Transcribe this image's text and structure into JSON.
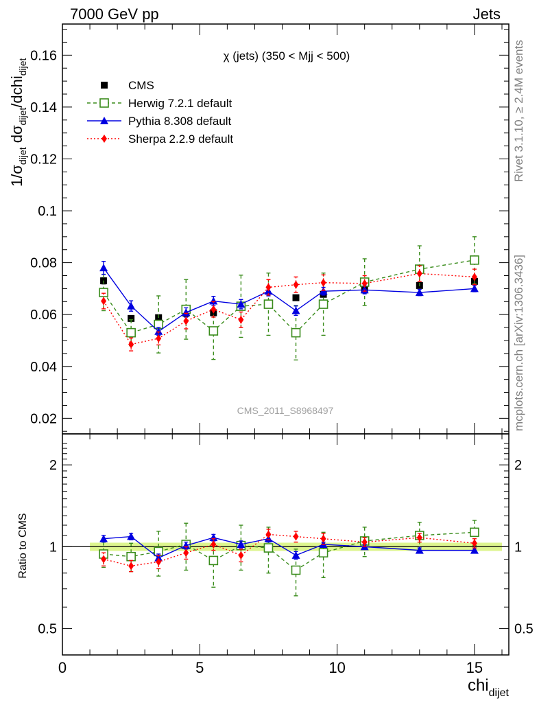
{
  "header": {
    "energy_label": "7000 GeV pp",
    "process_label": "Jets"
  },
  "side_labels": {
    "rivet": "Rivet 3.1.10, ≥ 2.4M events",
    "mcplots": "mcplots.cern.ch [arXiv:1306.3436]"
  },
  "analysis_id": "CMS_2011_S8968497",
  "plot_title": "χ (jets) (350 < Mjj <  500)",
  "y_label": {
    "main": "1/σ",
    "sub1": "dijet",
    "mid": " dσ",
    "sub2": "dijet",
    "tail": "/dchi",
    "sub3": "dijet"
  },
  "x_label": {
    "main": "chi",
    "sub": "dijet"
  },
  "ratio_label": "Ratio to CMS",
  "colors": {
    "cms": "#000000",
    "herwig": "#3a8c1c",
    "pythia": "#0000e0",
    "sherpa": "#ff0000",
    "band": "#ddf58f"
  },
  "chart_data": [
    {
      "type": "scatter",
      "x_range": [
        0,
        16.25
      ],
      "ylim": [
        0.014,
        0.172
      ],
      "yticks": [
        "0.02",
        "0.04",
        "0.06",
        "0.08",
        "0.1",
        "0.12",
        "0.14",
        "0.16"
      ],
      "legend_position": "top-left",
      "x": [
        1.5,
        2.5,
        3.5,
        4.5,
        5.5,
        6.5,
        7.5,
        8.5,
        9.5,
        11,
        13,
        15
      ],
      "series": [
        {
          "key": "cms",
          "name": "CMS",
          "values": [
            0.073,
            0.0585,
            0.0588,
            0.0605,
            0.0607,
            0.0632,
            0.0642,
            0.0665,
            0.0678,
            0.0695,
            0.0712,
            0.0728
          ],
          "errors": [
            0.0012,
            0.001,
            0.001,
            0.001,
            0.001,
            0.001,
            0.001,
            0.001,
            0.001,
            0.001,
            0.001,
            0.001
          ]
        },
        {
          "key": "herwig",
          "name": "Herwig 7.2.1 default",
          "values": [
            0.0685,
            0.053,
            0.0562,
            0.062,
            0.0537,
            0.0632,
            0.064,
            0.053,
            0.064,
            0.0725,
            0.0775,
            0.081
          ],
          "errors": [
            0.007,
            0.005,
            0.011,
            0.0115,
            0.011,
            0.012,
            0.012,
            0.0105,
            0.012,
            0.009,
            0.009,
            0.009
          ]
        },
        {
          "key": "pythia",
          "name": "Pythia 8.308 default",
          "values": [
            0.078,
            0.0633,
            0.0535,
            0.0608,
            0.0652,
            0.064,
            0.069,
            0.0615,
            0.069,
            0.0695,
            0.0685,
            0.07
          ],
          "errors": [
            0.0025,
            0.002,
            0.0015,
            0.0018,
            0.0018,
            0.0018,
            0.0018,
            0.0018,
            0.0015,
            0.0015,
            0.0012,
            0.0012
          ]
        },
        {
          "key": "sherpa",
          "name": "Sherpa 2.2.9 default",
          "values": [
            0.0652,
            0.0485,
            0.0508,
            0.0575,
            0.062,
            0.058,
            0.0705,
            0.0715,
            0.0723,
            0.072,
            0.0758,
            0.0745
          ],
          "errors": [
            0.003,
            0.0025,
            0.0025,
            0.003,
            0.003,
            0.003,
            0.003,
            0.003,
            0.003,
            0.003,
            0.003,
            0.003
          ]
        }
      ]
    },
    {
      "type": "scatter",
      "x_range": [
        0,
        16.25
      ],
      "y_scale": "log",
      "ylim": [
        0.4,
        2.6
      ],
      "yticks": [
        "0.5",
        "1",
        "2"
      ],
      "band_half_width": 0.035,
      "x": [
        1.5,
        2.5,
        3.5,
        4.5,
        5.5,
        6.5,
        7.5,
        8.5,
        9.5,
        11,
        13,
        15
      ],
      "series": [
        {
          "key": "herwig",
          "name": "Herwig 7.2.1 default",
          "values": [
            0.94,
            0.92,
            0.96,
            1.02,
            0.89,
            1.01,
            0.99,
            0.82,
            0.95,
            1.05,
            1.1,
            1.13
          ],
          "errors": [
            0.1,
            0.11,
            0.18,
            0.2,
            0.18,
            0.19,
            0.19,
            0.16,
            0.18,
            0.13,
            0.13,
            0.12
          ]
        },
        {
          "key": "pythia",
          "name": "Pythia 8.308 default",
          "values": [
            1.07,
            1.09,
            0.91,
            1.01,
            1.08,
            1.02,
            1.07,
            0.93,
            1.02,
            1.0,
            0.97,
            0.97
          ],
          "errors": [
            0.03,
            0.03,
            0.03,
            0.03,
            0.03,
            0.03,
            0.03,
            0.03,
            0.02,
            0.02,
            0.02,
            0.02
          ]
        },
        {
          "key": "sherpa",
          "name": "Sherpa 2.2.9 default",
          "values": [
            0.9,
            0.85,
            0.88,
            0.95,
            1.02,
            0.93,
            1.11,
            1.09,
            1.07,
            1.04,
            1.08,
            1.03
          ],
          "errors": [
            0.05,
            0.04,
            0.05,
            0.05,
            0.05,
            0.05,
            0.05,
            0.05,
            0.05,
            0.04,
            0.04,
            0.04
          ]
        }
      ]
    }
  ],
  "x_axis": {
    "ticks": [
      "0",
      "5",
      "10",
      "15"
    ]
  }
}
